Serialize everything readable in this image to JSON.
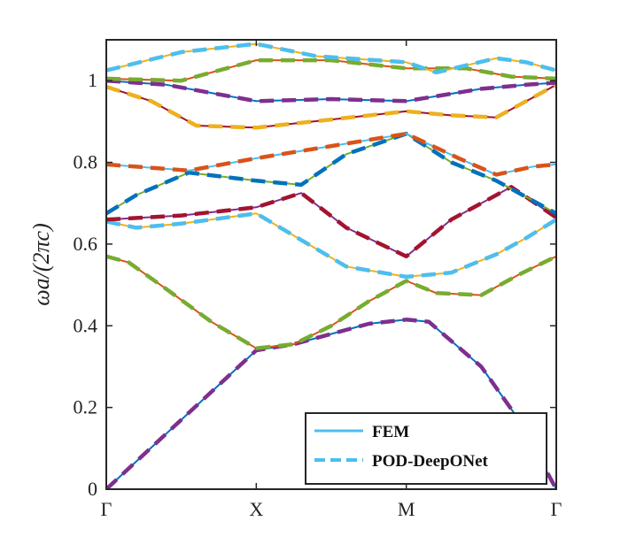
{
  "chart_data": {
    "type": "line",
    "title": "",
    "xlabel": "",
    "ylabel": "ωa/(2πc)",
    "x_ticks": [
      "Γ",
      "X",
      "M",
      "Γ"
    ],
    "x_tick_positions": [
      0,
      1,
      2,
      3
    ],
    "xlim": [
      0,
      3
    ],
    "ylim": [
      0,
      1.1
    ],
    "y_ticks": [
      0,
      0.2,
      0.4,
      0.6,
      0.8,
      1
    ],
    "y_tick_labels": [
      "0",
      "0.2",
      "0.4",
      "0.6",
      "0.8",
      "1"
    ],
    "grid": false,
    "legend": {
      "position": "bottom-right",
      "entries": [
        {
          "name": "FEM",
          "style": "solid",
          "color": "#4DBEEE"
        },
        {
          "name": "POD-DeepONet",
          "style": "dashed",
          "color": "#4DBEEE"
        }
      ]
    },
    "colors": {
      "blue": "#0072BD",
      "orange": "#D95319",
      "yellow": "#EDB120",
      "purple": "#7E2F8E",
      "green": "#77AC30",
      "cyan": "#4DBEEE",
      "crimson": "#A2142F"
    },
    "series": [
      {
        "name": "band-1",
        "method": "FEM",
        "color": "#0072BD",
        "points": [
          [
            0,
            0
          ],
          [
            0.5,
            0.17
          ],
          [
            1,
            0.34
          ],
          [
            1.25,
            0.355
          ],
          [
            1.5,
            0.38
          ],
          [
            1.75,
            0.405
          ],
          [
            2,
            0.415
          ],
          [
            2.15,
            0.41
          ],
          [
            2.5,
            0.3
          ],
          [
            2.75,
            0.17
          ],
          [
            3,
            0
          ]
        ]
      },
      {
        "name": "band-1",
        "method": "POD-DeepONet",
        "color": "#7E2F8E",
        "points": [
          [
            0,
            0
          ],
          [
            0.5,
            0.17
          ],
          [
            1,
            0.34
          ],
          [
            1.25,
            0.355
          ],
          [
            1.5,
            0.38
          ],
          [
            1.75,
            0.405
          ],
          [
            2,
            0.415
          ],
          [
            2.15,
            0.41
          ],
          [
            2.5,
            0.3
          ],
          [
            2.75,
            0.17
          ],
          [
            3,
            0
          ]
        ]
      },
      {
        "name": "band-2",
        "method": "FEM",
        "color": "#D95319",
        "points": [
          [
            0,
            0.57
          ],
          [
            0.15,
            0.555
          ],
          [
            0.4,
            0.49
          ],
          [
            0.7,
            0.41
          ],
          [
            1,
            0.345
          ],
          [
            1.25,
            0.355
          ],
          [
            1.5,
            0.4
          ],
          [
            1.75,
            0.46
          ],
          [
            2,
            0.51
          ],
          [
            2.2,
            0.48
          ],
          [
            2.5,
            0.475
          ],
          [
            2.75,
            0.525
          ],
          [
            3,
            0.57
          ]
        ]
      },
      {
        "name": "band-2",
        "method": "POD-DeepONet",
        "color": "#77AC30",
        "points": [
          [
            0,
            0.57
          ],
          [
            0.15,
            0.555
          ],
          [
            0.4,
            0.49
          ],
          [
            0.7,
            0.41
          ],
          [
            1,
            0.345
          ],
          [
            1.25,
            0.355
          ],
          [
            1.5,
            0.4
          ],
          [
            1.75,
            0.46
          ],
          [
            2,
            0.51
          ],
          [
            2.2,
            0.48
          ],
          [
            2.5,
            0.475
          ],
          [
            2.75,
            0.525
          ],
          [
            3,
            0.57
          ]
        ]
      },
      {
        "name": "band-3",
        "method": "FEM",
        "color": "#EDB120",
        "points": [
          [
            0,
            0.655
          ],
          [
            0.2,
            0.64
          ],
          [
            0.5,
            0.65
          ],
          [
            1,
            0.675
          ],
          [
            1.3,
            0.61
          ],
          [
            1.6,
            0.545
          ],
          [
            2,
            0.52
          ],
          [
            2.3,
            0.53
          ],
          [
            2.6,
            0.575
          ],
          [
            2.8,
            0.615
          ],
          [
            3,
            0.66
          ]
        ]
      },
      {
        "name": "band-3",
        "method": "POD-DeepONet",
        "color": "#4DBEEE",
        "points": [
          [
            0,
            0.655
          ],
          [
            0.2,
            0.64
          ],
          [
            0.5,
            0.65
          ],
          [
            1,
            0.675
          ],
          [
            1.3,
            0.61
          ],
          [
            1.6,
            0.545
          ],
          [
            2,
            0.52
          ],
          [
            2.3,
            0.53
          ],
          [
            2.6,
            0.575
          ],
          [
            2.8,
            0.615
          ],
          [
            3,
            0.66
          ]
        ]
      },
      {
        "name": "band-4",
        "method": "FEM",
        "color": "#7E2F8E",
        "points": [
          [
            0,
            0.66
          ],
          [
            0.5,
            0.67
          ],
          [
            1,
            0.69
          ],
          [
            1.3,
            0.725
          ],
          [
            1.6,
            0.64
          ],
          [
            2,
            0.57
          ],
          [
            2.3,
            0.66
          ],
          [
            2.7,
            0.74
          ],
          [
            3,
            0.665
          ]
        ]
      },
      {
        "name": "band-4",
        "method": "POD-DeepONet",
        "color": "#A2142F",
        "points": [
          [
            0,
            0.66
          ],
          [
            0.5,
            0.67
          ],
          [
            1,
            0.69
          ],
          [
            1.3,
            0.725
          ],
          [
            1.6,
            0.64
          ],
          [
            2,
            0.57
          ],
          [
            2.3,
            0.66
          ],
          [
            2.7,
            0.74
          ],
          [
            3,
            0.665
          ]
        ]
      },
      {
        "name": "band-5",
        "method": "FEM",
        "color": "#77AC30",
        "points": [
          [
            0,
            0.675
          ],
          [
            0.2,
            0.72
          ],
          [
            0.55,
            0.775
          ],
          [
            1,
            0.755
          ],
          [
            1.3,
            0.745
          ],
          [
            1.6,
            0.82
          ],
          [
            2,
            0.87
          ],
          [
            2.3,
            0.8
          ],
          [
            2.6,
            0.755
          ],
          [
            3,
            0.675
          ]
        ]
      },
      {
        "name": "band-5",
        "method": "POD-DeepONet",
        "color": "#0072BD",
        "points": [
          [
            0,
            0.675
          ],
          [
            0.2,
            0.72
          ],
          [
            0.55,
            0.775
          ],
          [
            1,
            0.755
          ],
          [
            1.3,
            0.745
          ],
          [
            1.6,
            0.82
          ],
          [
            2,
            0.87
          ],
          [
            2.3,
            0.8
          ],
          [
            2.6,
            0.755
          ],
          [
            3,
            0.675
          ]
        ]
      },
      {
        "name": "band-6",
        "method": "FEM",
        "color": "#4DBEEE",
        "points": [
          [
            0,
            0.795
          ],
          [
            0.55,
            0.78
          ],
          [
            1,
            0.81
          ],
          [
            1.5,
            0.84
          ],
          [
            2,
            0.87
          ],
          [
            2.35,
            0.81
          ],
          [
            2.6,
            0.77
          ],
          [
            2.85,
            0.79
          ],
          [
            3,
            0.795
          ]
        ]
      },
      {
        "name": "band-6",
        "method": "POD-DeepONet",
        "color": "#D95319",
        "points": [
          [
            0,
            0.795
          ],
          [
            0.55,
            0.78
          ],
          [
            1,
            0.81
          ],
          [
            1.5,
            0.84
          ],
          [
            2,
            0.87
          ],
          [
            2.35,
            0.81
          ],
          [
            2.6,
            0.77
          ],
          [
            2.85,
            0.79
          ],
          [
            3,
            0.795
          ]
        ]
      },
      {
        "name": "band-7",
        "method": "FEM",
        "color": "#A2142F",
        "points": [
          [
            0,
            0.985
          ],
          [
            0.3,
            0.95
          ],
          [
            0.6,
            0.89
          ],
          [
            1,
            0.885
          ],
          [
            1.5,
            0.905
          ],
          [
            2,
            0.925
          ],
          [
            2.3,
            0.915
          ],
          [
            2.6,
            0.91
          ],
          [
            2.85,
            0.96
          ],
          [
            3,
            0.99
          ]
        ]
      },
      {
        "name": "band-7",
        "method": "POD-DeepONet",
        "color": "#EDB120",
        "points": [
          [
            0,
            0.985
          ],
          [
            0.3,
            0.95
          ],
          [
            0.6,
            0.89
          ],
          [
            1,
            0.885
          ],
          [
            1.5,
            0.905
          ],
          [
            2,
            0.925
          ],
          [
            2.3,
            0.915
          ],
          [
            2.6,
            0.91
          ],
          [
            2.85,
            0.96
          ],
          [
            3,
            0.99
          ]
        ]
      },
      {
        "name": "band-8",
        "method": "FEM",
        "color": "#0072BD",
        "points": [
          [
            0,
            1.0
          ],
          [
            0.4,
            0.99
          ],
          [
            1,
            0.95
          ],
          [
            1.5,
            0.955
          ],
          [
            2,
            0.95
          ],
          [
            2.5,
            0.98
          ],
          [
            2.8,
            0.99
          ],
          [
            3,
            0.995
          ]
        ]
      },
      {
        "name": "band-8",
        "method": "POD-DeepONet",
        "color": "#7E2F8E",
        "points": [
          [
            0,
            1.0
          ],
          [
            0.4,
            0.99
          ],
          [
            1,
            0.95
          ],
          [
            1.5,
            0.955
          ],
          [
            2,
            0.95
          ],
          [
            2.5,
            0.98
          ],
          [
            2.8,
            0.99
          ],
          [
            3,
            0.995
          ]
        ]
      },
      {
        "name": "band-9",
        "method": "FEM",
        "color": "#D95319",
        "points": [
          [
            0,
            1.005
          ],
          [
            0.5,
            1.0
          ],
          [
            1,
            1.05
          ],
          [
            1.5,
            1.05
          ],
          [
            2,
            1.03
          ],
          [
            2.4,
            1.03
          ],
          [
            2.7,
            1.01
          ],
          [
            3,
            1.005
          ]
        ]
      },
      {
        "name": "band-9",
        "method": "POD-DeepONet",
        "color": "#77AC30",
        "points": [
          [
            0,
            1.005
          ],
          [
            0.5,
            1.0
          ],
          [
            1,
            1.05
          ],
          [
            1.5,
            1.05
          ],
          [
            2,
            1.03
          ],
          [
            2.4,
            1.03
          ],
          [
            2.7,
            1.01
          ],
          [
            3,
            1.005
          ]
        ]
      },
      {
        "name": "band-10",
        "method": "FEM",
        "color": "#EDB120",
        "points": [
          [
            0,
            1.025
          ],
          [
            0.5,
            1.07
          ],
          [
            1,
            1.09
          ],
          [
            1.4,
            1.06
          ],
          [
            2,
            1.045
          ],
          [
            2.2,
            1.02
          ],
          [
            2.6,
            1.055
          ],
          [
            2.8,
            1.045
          ],
          [
            3,
            1.025
          ]
        ]
      },
      {
        "name": "band-10",
        "method": "POD-DeepONet",
        "color": "#4DBEEE",
        "points": [
          [
            0,
            1.025
          ],
          [
            0.5,
            1.07
          ],
          [
            1,
            1.09
          ],
          [
            1.4,
            1.06
          ],
          [
            2,
            1.045
          ],
          [
            2.2,
            1.02
          ],
          [
            2.6,
            1.055
          ],
          [
            2.8,
            1.045
          ],
          [
            3,
            1.025
          ]
        ]
      }
    ]
  }
}
